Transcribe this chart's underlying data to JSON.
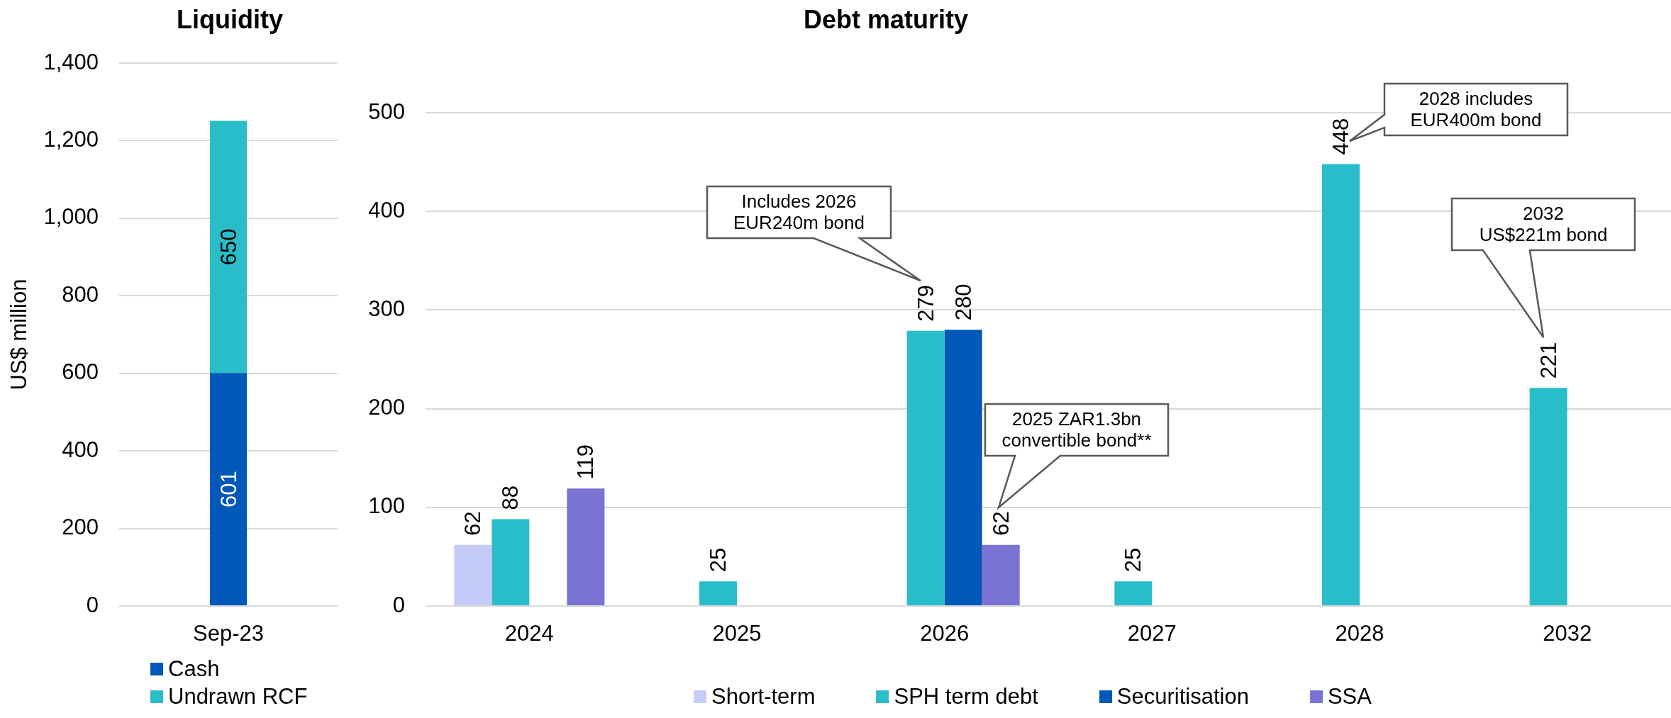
{
  "chart_data": [
    {
      "type": "bar",
      "title": "Liquidity",
      "ylabel": "US$ million",
      "categories": [
        "Sep-23"
      ],
      "series": [
        {
          "name": "Cash",
          "color": "#0058b8",
          "values": [
            601
          ]
        },
        {
          "name": "Undrawn RCF",
          "color": "#29bdca",
          "values": [
            650
          ]
        }
      ],
      "stacked": true,
      "ylim": [
        0,
        1400
      ],
      "yticks": [
        0,
        200,
        400,
        600,
        800,
        {
          "value": 1000,
          "label": "1,000"
        },
        {
          "value": 1200,
          "label": "1,200"
        },
        {
          "value": 1400,
          "label": "1,400"
        }
      ],
      "grid": "y",
      "legend": "bottom",
      "data_labels": true
    },
    {
      "type": "bar",
      "title": "Debt maturity",
      "categories": [
        "2024",
        "2025",
        "2026",
        "2027",
        "2028",
        "2032"
      ],
      "series": [
        {
          "name": "Short-term",
          "color": "#c5ccfa",
          "values": [
            62,
            null,
            null,
            null,
            null,
            null
          ]
        },
        {
          "name": "SPH term debt",
          "color": "#29bdca",
          "values": [
            88,
            25,
            279,
            25,
            448,
            221
          ]
        },
        {
          "name": "Securitisation",
          "color": "#0058b8",
          "values": [
            null,
            null,
            280,
            null,
            null,
            null
          ]
        },
        {
          "name": "SSA",
          "color": "#7b73d1",
          "values": [
            119,
            null,
            62,
            null,
            null,
            null
          ]
        }
      ],
      "ylim": [
        0,
        500
      ],
      "yticks": [
        0,
        100,
        200,
        300,
        400,
        500
      ],
      "grid": "y",
      "legend": "bottom",
      "data_labels": true,
      "annotations": [
        "Includes 2026 EUR240m bond",
        "2025 ZAR1.3bn convertible bond**",
        "2028 includes EUR400m bond",
        "2032 US$221m bond"
      ]
    }
  ]
}
